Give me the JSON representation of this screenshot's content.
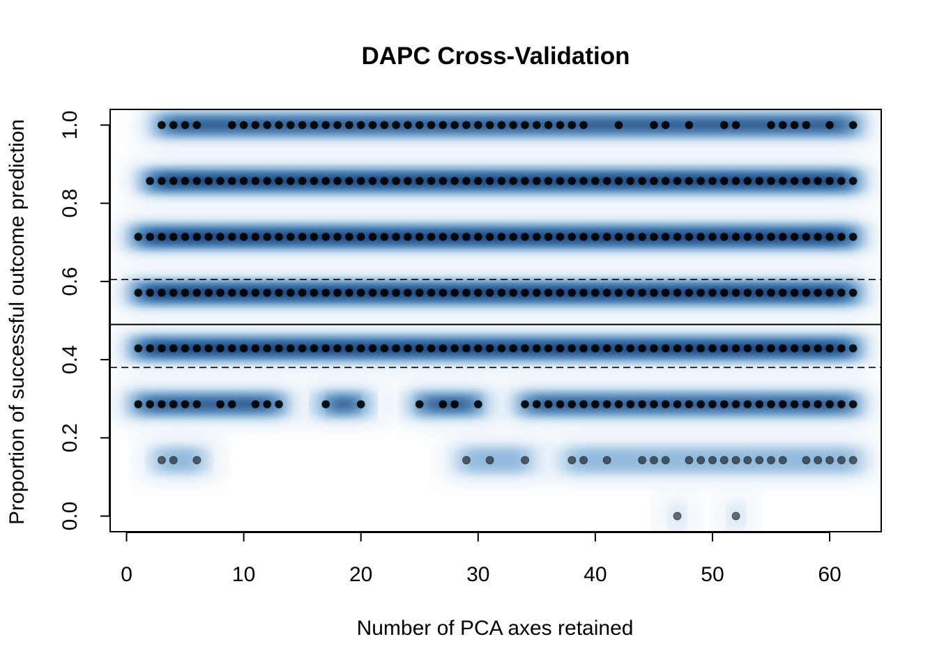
{
  "chart_data": {
    "type": "scatter",
    "title": "DAPC Cross-Validation",
    "xlabel": "Number of PCA axes retained",
    "ylabel": "Proportion of successful outcome prediction",
    "xlim": [
      -1.4,
      64.4
    ],
    "ylim": [
      -0.04,
      1.04
    ],
    "x_ticks": [
      "0",
      "10",
      "20",
      "30",
      "40",
      "50",
      "60"
    ],
    "y_ticks": [
      "0.0",
      "0.2",
      "0.4",
      "0.6",
      "0.8",
      "1.0"
    ],
    "reference_lines": {
      "solid": 0.49,
      "dashed": [
        0.605,
        0.38
      ]
    },
    "colors": {
      "density_light": "#dbe9f6",
      "density_mid": "#4a8cc4",
      "density_dark": "#08306b",
      "point_fill": "#000000"
    },
    "points_note": "each y level lists the PCA axis counts where that proportion was observed",
    "levels": [
      {
        "y": 1.0,
        "x": [
          3,
          4,
          5,
          6,
          9,
          10,
          11,
          12,
          13,
          14,
          15,
          16,
          17,
          18,
          19,
          20,
          21,
          22,
          23,
          24,
          25,
          26,
          27,
          28,
          29,
          30,
          31,
          32,
          33,
          34,
          35,
          36,
          37,
          38,
          39,
          42,
          45,
          46,
          48,
          51,
          52,
          55,
          56,
          57,
          58,
          60,
          62
        ]
      },
      {
        "y": 0.857,
        "x": [
          2,
          3,
          4,
          5,
          6,
          7,
          8,
          9,
          10,
          11,
          12,
          13,
          14,
          15,
          16,
          17,
          18,
          19,
          20,
          21,
          22,
          23,
          24,
          25,
          26,
          27,
          28,
          29,
          30,
          31,
          32,
          33,
          34,
          35,
          36,
          37,
          38,
          39,
          40,
          41,
          42,
          43,
          44,
          45,
          46,
          47,
          48,
          49,
          50,
          51,
          52,
          53,
          54,
          55,
          56,
          57,
          58,
          59,
          60,
          61,
          62
        ]
      },
      {
        "y": 0.714,
        "x": [
          1,
          2,
          3,
          4,
          5,
          6,
          7,
          8,
          9,
          10,
          11,
          12,
          13,
          14,
          15,
          16,
          17,
          18,
          19,
          20,
          21,
          22,
          23,
          24,
          25,
          26,
          27,
          28,
          29,
          30,
          31,
          32,
          33,
          34,
          35,
          36,
          37,
          38,
          39,
          40,
          41,
          42,
          43,
          44,
          45,
          46,
          47,
          48,
          49,
          50,
          51,
          52,
          53,
          54,
          55,
          56,
          57,
          58,
          59,
          60,
          61,
          62
        ]
      },
      {
        "y": 0.571,
        "x": [
          1,
          2,
          3,
          4,
          5,
          6,
          7,
          8,
          9,
          10,
          11,
          12,
          13,
          14,
          15,
          16,
          17,
          18,
          19,
          20,
          21,
          22,
          23,
          24,
          25,
          26,
          27,
          28,
          29,
          30,
          31,
          32,
          33,
          34,
          35,
          36,
          37,
          38,
          39,
          40,
          41,
          42,
          43,
          44,
          45,
          46,
          47,
          48,
          49,
          50,
          51,
          52,
          53,
          54,
          55,
          56,
          57,
          58,
          59,
          60,
          61,
          62
        ]
      },
      {
        "y": 0.429,
        "x": [
          1,
          2,
          3,
          4,
          5,
          6,
          7,
          8,
          9,
          10,
          11,
          12,
          13,
          14,
          15,
          16,
          17,
          18,
          19,
          20,
          21,
          22,
          23,
          24,
          25,
          26,
          27,
          28,
          29,
          30,
          31,
          32,
          33,
          34,
          35,
          36,
          37,
          38,
          39,
          40,
          41,
          42,
          43,
          44,
          45,
          46,
          47,
          48,
          49,
          50,
          51,
          52,
          53,
          54,
          55,
          56,
          57,
          58,
          59,
          60,
          61,
          62
        ]
      },
      {
        "y": 0.286,
        "x": [
          1,
          2,
          3,
          4,
          5,
          6,
          8,
          9,
          11,
          12,
          13,
          17,
          20,
          25,
          27,
          28,
          30,
          34,
          35,
          36,
          37,
          38,
          39,
          40,
          41,
          42,
          43,
          44,
          45,
          46,
          47,
          48,
          49,
          50,
          51,
          52,
          53,
          54,
          55,
          56,
          57,
          58,
          59,
          60,
          61,
          62
        ]
      },
      {
        "y": 0.143,
        "x": [
          3,
          4,
          6,
          29,
          31,
          34,
          38,
          39,
          41,
          44,
          45,
          46,
          48,
          49,
          50,
          51,
          52,
          53,
          54,
          55,
          56,
          58,
          59,
          60,
          61,
          62
        ]
      },
      {
        "y": 0.0,
        "x": [
          47,
          52
        ]
      }
    ]
  }
}
